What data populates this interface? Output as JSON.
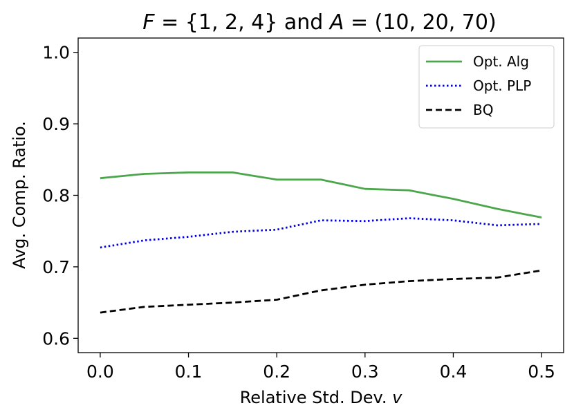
{
  "chart_data": {
    "type": "line",
    "title": "F = {1, 2, 4} and A = (10, 20, 70)",
    "title_parts": {
      "var1": "F",
      "eq1": " = {1, 2, 4} and ",
      "var2": "A",
      "eq2": " = (10, 20, 70)"
    },
    "xlabel": "Relative Std. Dev. v",
    "xlabel_parts": {
      "text": "Relative Std. Dev. ",
      "var": "v"
    },
    "ylabel": "Avg. Comp. Ratio.",
    "xlim": [
      -0.025,
      0.525
    ],
    "ylim": [
      0.58,
      1.02
    ],
    "xticks": [
      0.0,
      0.1,
      0.2,
      0.3,
      0.4,
      0.5
    ],
    "xtick_labels": [
      "0.0",
      "0.1",
      "0.2",
      "0.3",
      "0.4",
      "0.5"
    ],
    "yticks": [
      0.6,
      0.7,
      0.8,
      0.9,
      1.0
    ],
    "ytick_labels": [
      "0.6",
      "0.7",
      "0.8",
      "0.9",
      "1.0"
    ],
    "grid": false,
    "legend_position": "top-right",
    "x": [
      0.0,
      0.05,
      0.1,
      0.15,
      0.2,
      0.25,
      0.3,
      0.35,
      0.4,
      0.45,
      0.5
    ],
    "series": [
      {
        "name": "Opt. Alg",
        "color": "#4ca64c",
        "style": "solid",
        "values": [
          0.824,
          0.83,
          0.832,
          0.832,
          0.822,
          0.822,
          0.809,
          0.807,
          0.795,
          0.781,
          0.769
        ]
      },
      {
        "name": "Opt. PLP",
        "color": "#0000dd",
        "style": "dotted",
        "values": [
          0.727,
          0.737,
          0.742,
          0.749,
          0.752,
          0.765,
          0.764,
          0.768,
          0.765,
          0.758,
          0.76
        ]
      },
      {
        "name": "BQ",
        "color": "#000000",
        "style": "dashed",
        "values": [
          0.636,
          0.644,
          0.647,
          0.65,
          0.654,
          0.667,
          0.675,
          0.68,
          0.683,
          0.685,
          0.695
        ]
      }
    ]
  }
}
